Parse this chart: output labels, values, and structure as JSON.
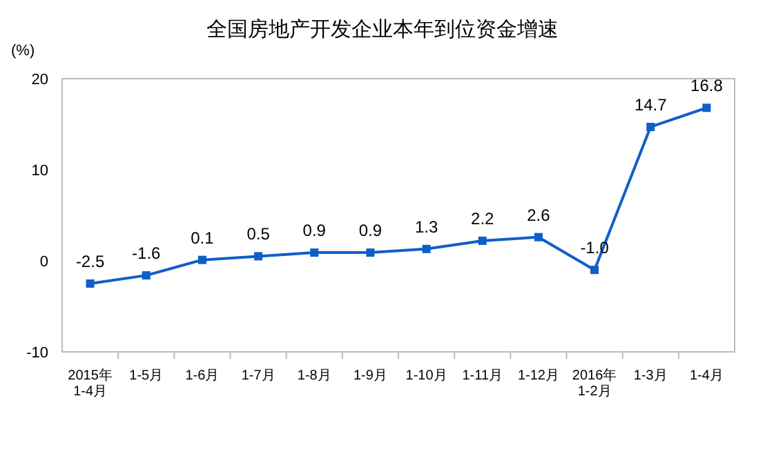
{
  "chart_data": {
    "type": "line",
    "title": "全国房地产开发企业本年到位资金增速",
    "ylabel": "(%)",
    "categories": [
      "2015年\n1-4月",
      "1-5月",
      "1-6月",
      "1-7月",
      "1-8月",
      "1-9月",
      "1-10月",
      "1-11月",
      "1-12月",
      "2016年\n1-2月",
      "1-3月",
      "1-4月"
    ],
    "series": [
      {
        "color": "#0f5fc8",
        "values": [
          -2.5,
          -1.6,
          0.1,
          0.5,
          0.9,
          0.9,
          1.3,
          2.2,
          2.6,
          -1.0,
          14.7,
          16.8
        ],
        "value_labels": [
          "-2.5",
          "-1.6",
          "0.1",
          "0.5",
          "0.9",
          "0.9",
          "1.3",
          "2.2",
          "2.6",
          "-1.0",
          "14.7",
          "16.8"
        ]
      }
    ],
    "ylim": [
      -10,
      20
    ],
    "yticks": [
      -10,
      0,
      10,
      20
    ],
    "marker": "square",
    "line_style": "solid",
    "grid": false
  }
}
